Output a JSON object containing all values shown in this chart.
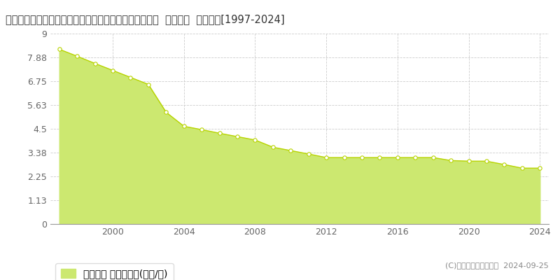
{
  "title": "長野県南佐久郡南牧村大字野辺山字二ツ山３０６番１７  基準地価  地価推移[1997-2024]",
  "years": [
    1997,
    1998,
    1999,
    2000,
    2001,
    2002,
    2003,
    2004,
    2005,
    2006,
    2007,
    2008,
    2009,
    2010,
    2011,
    2012,
    2013,
    2014,
    2015,
    2016,
    2017,
    2018,
    2019,
    2020,
    2021,
    2022,
    2023,
    2024
  ],
  "values": [
    8.26,
    7.93,
    7.59,
    7.26,
    6.93,
    6.6,
    5.28,
    4.62,
    4.46,
    4.29,
    4.13,
    3.97,
    3.63,
    3.47,
    3.31,
    3.14,
    3.14,
    3.14,
    3.14,
    3.14,
    3.14,
    3.14,
    3.0,
    2.97,
    2.97,
    2.81,
    2.64,
    2.64
  ],
  "fill_color": "#cce870",
  "line_color": "#b8d400",
  "marker_color": "#ffffff",
  "marker_edge_color": "#b8d400",
  "ylim": [
    0,
    9
  ],
  "yticks": [
    0,
    1.13,
    2.25,
    3.38,
    4.5,
    5.63,
    6.75,
    7.88,
    9
  ],
  "ytick_labels": [
    "0",
    "1.13",
    "2.25",
    "3.38",
    "4.5",
    "5.63",
    "6.75",
    "7.88",
    "9"
  ],
  "xticks": [
    2000,
    2004,
    2008,
    2012,
    2016,
    2020,
    2024
  ],
  "xtick_labels": [
    "2000",
    "2004",
    "2008",
    "2012",
    "2016",
    "2020",
    "2024"
  ],
  "legend_label": "基準地価 平均坪単価(万円/坪)",
  "copyright_text": "(C)土地価格ドットコム  2024-09-25",
  "bg_color": "#ffffff",
  "grid_color": "#cccccc",
  "title_fontsize": 10.5,
  "tick_fontsize": 9,
  "legend_fontsize": 10
}
